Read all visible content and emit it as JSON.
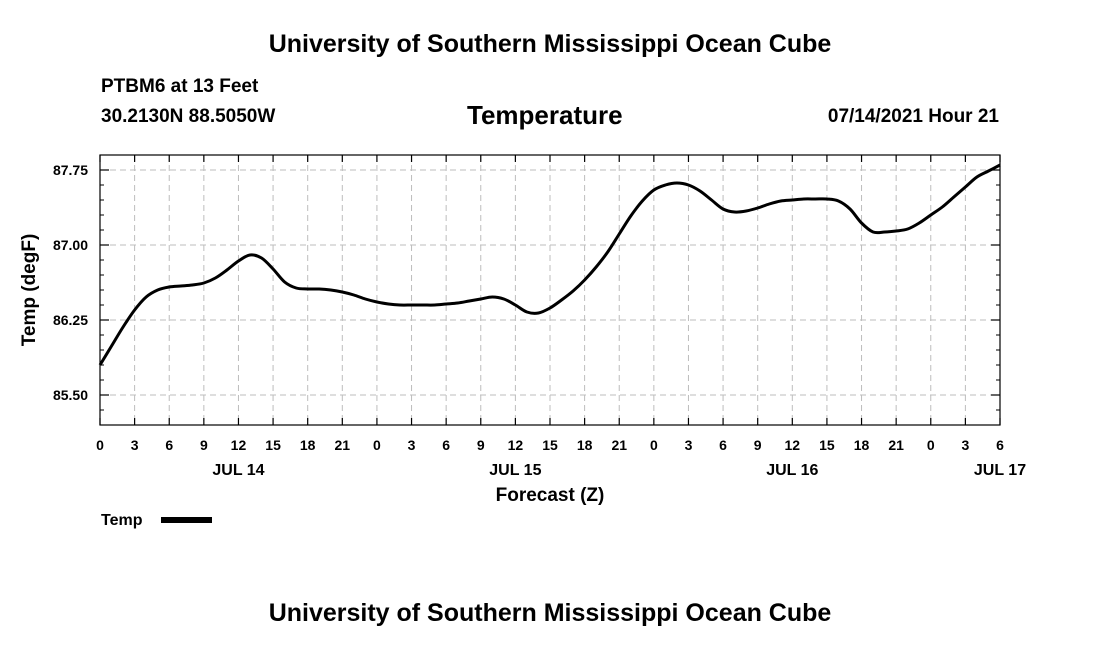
{
  "header": {
    "title": "University of Southern Mississippi Ocean Cube",
    "station": "PTBM6 at 13 Feet",
    "coords": "30.2130N  88.5050W",
    "variable": "Temperature",
    "datetime": "07/14/2021 Hour 21"
  },
  "footer": {
    "title": "University of Southern Mississippi Ocean Cube"
  },
  "chart_data": {
    "type": "line",
    "title": "Temperature",
    "xlabel": "Forecast (Z)",
    "ylabel": "Temp (degF)",
    "xlim": [
      0,
      78
    ],
    "ylim": [
      85.2,
      87.9
    ],
    "y_ticks": [
      85.5,
      86.25,
      87.0,
      87.75
    ],
    "y_tick_labels": [
      "85.50",
      "86.25",
      "87.00",
      "87.75"
    ],
    "x_tick_labels": [
      "0",
      "3",
      "6",
      "9",
      "12",
      "15",
      "18",
      "21",
      "0",
      "3",
      "6",
      "9",
      "12",
      "15",
      "18",
      "21",
      "0",
      "3",
      "6",
      "9",
      "12",
      "15",
      "18",
      "21",
      "0",
      "3",
      "6"
    ],
    "day_labels": [
      {
        "label": "JUL 14",
        "x": 12
      },
      {
        "label": "JUL 15",
        "x": 36
      },
      {
        "label": "JUL 16",
        "x": 60
      },
      {
        "label": "JUL 17",
        "x": 78
      }
    ],
    "grid": true,
    "legend": "bottom-left",
    "series": [
      {
        "name": "Temp",
        "color": "#000000",
        "x": [
          0,
          1,
          2,
          3,
          4,
          5,
          6,
          7,
          8,
          9,
          10,
          11,
          12,
          13,
          14,
          15,
          16,
          17,
          18,
          19,
          20,
          21,
          22,
          23,
          24,
          25,
          26,
          27,
          28,
          29,
          30,
          31,
          32,
          33,
          34,
          35,
          36,
          37,
          38,
          39,
          40,
          41,
          42,
          43,
          44,
          45,
          46,
          47,
          48,
          49,
          50,
          51,
          52,
          53,
          54,
          55,
          56,
          57,
          58,
          59,
          60,
          61,
          62,
          63,
          64,
          65,
          66,
          67,
          68,
          69,
          70,
          71,
          72,
          73,
          74,
          75,
          76,
          77,
          78
        ],
        "values": [
          85.8,
          85.99,
          86.18,
          86.35,
          86.48,
          86.55,
          86.58,
          86.59,
          86.6,
          86.62,
          86.67,
          86.75,
          86.84,
          86.9,
          86.87,
          86.76,
          86.63,
          86.57,
          86.56,
          86.56,
          86.55,
          86.53,
          86.5,
          86.46,
          86.43,
          86.41,
          86.4,
          86.4,
          86.4,
          86.4,
          86.41,
          86.42,
          86.44,
          86.46,
          86.48,
          86.46,
          86.4,
          86.33,
          86.32,
          86.37,
          86.45,
          86.54,
          86.65,
          86.78,
          86.93,
          87.11,
          87.29,
          87.44,
          87.55,
          87.6,
          87.62,
          87.6,
          87.54,
          87.45,
          87.36,
          87.33,
          87.34,
          87.37,
          87.41,
          87.44,
          87.45,
          87.46,
          87.46,
          87.46,
          87.44,
          87.36,
          87.22,
          87.13,
          87.13,
          87.14,
          87.16,
          87.22,
          87.3,
          87.38,
          87.48,
          87.58,
          87.68,
          87.74,
          87.8
        ]
      }
    ]
  }
}
